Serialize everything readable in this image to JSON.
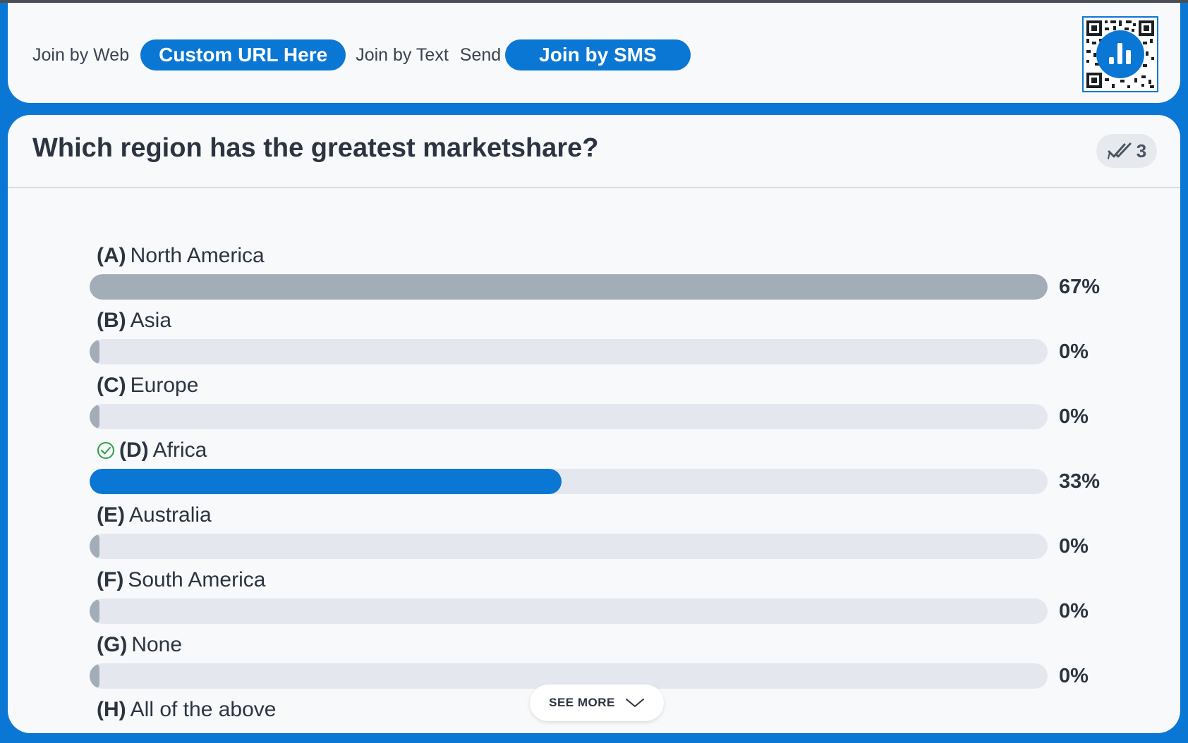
{
  "header": {
    "join_web_label": "Join by Web",
    "custom_url": "Custom URL Here",
    "join_text_label": "Join by Text",
    "send_label": "Send",
    "join_sms": "Join by SMS",
    "qr_icon": "qr-code-icon"
  },
  "question": {
    "title": "Which region has the greatest marketshare?",
    "response_count": "3",
    "response_icon": "double-check-icon"
  },
  "colors": {
    "brand_blue": "#0b77d4",
    "bar_gray": "#a2adb8",
    "track": "#e4e8ee"
  },
  "chart_data": {
    "type": "bar",
    "orientation": "horizontal",
    "categories": [
      "North America",
      "Asia",
      "Europe",
      "Africa",
      "Australia",
      "South America",
      "None",
      "All of the above"
    ],
    "values": [
      67,
      0,
      0,
      33,
      0,
      0,
      0,
      null
    ],
    "unit": "%"
  },
  "options": [
    {
      "letter": "(A)",
      "text": "North America",
      "pct_label": "67%",
      "value": 0.67,
      "correct": false
    },
    {
      "letter": "(B)",
      "text": "Asia",
      "pct_label": "0%",
      "value": 0,
      "correct": false
    },
    {
      "letter": "(C)",
      "text": "Europe",
      "pct_label": "0%",
      "value": 0,
      "correct": false
    },
    {
      "letter": "(D)",
      "text": "Africa",
      "pct_label": "33%",
      "value": 0.33,
      "correct": true
    },
    {
      "letter": "(E)",
      "text": "Australia",
      "pct_label": "0%",
      "value": 0,
      "correct": false
    },
    {
      "letter": "(F)",
      "text": "South America",
      "pct_label": "0%",
      "value": 0,
      "correct": false
    },
    {
      "letter": "(G)",
      "text": "None",
      "pct_label": "0%",
      "value": 0,
      "correct": false
    },
    {
      "letter": "(H)",
      "text": "All of the above",
      "pct_label": "",
      "value": null,
      "correct": false
    }
  ],
  "see_more": {
    "label": "SEE MORE",
    "icon": "chevron-down-icon"
  }
}
